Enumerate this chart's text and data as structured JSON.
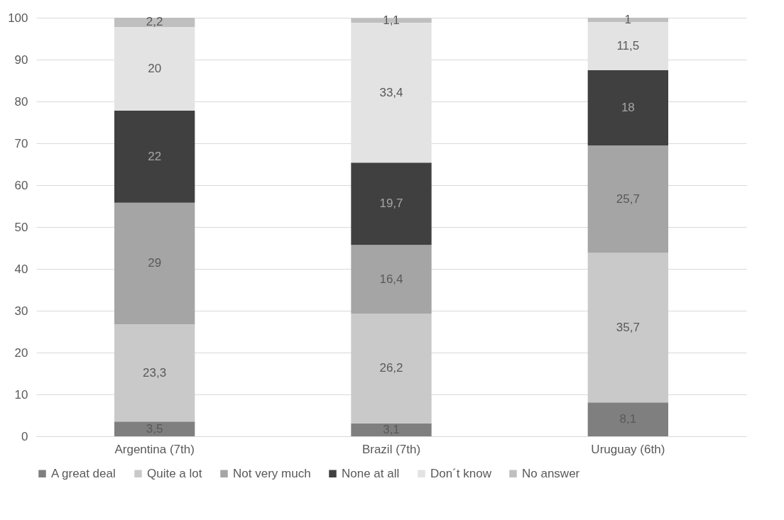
{
  "chart_data": {
    "type": "bar",
    "stacked": true,
    "categories": [
      "Argentina (7th)",
      "Brazil (7th)",
      "Uruguay (6th)"
    ],
    "series": [
      {
        "name": "A great deal",
        "color": "#7f7f7f",
        "values": [
          3.5,
          3.1,
          8.1
        ],
        "value_labels": [
          "3,5",
          "3,1",
          "8,1"
        ]
      },
      {
        "name": "Quite a lot",
        "color": "#c9c9c9",
        "values": [
          23.3,
          26.2,
          35.7
        ],
        "value_labels": [
          "23,3",
          "26,2",
          "35,7"
        ]
      },
      {
        "name": "Not very much",
        "color": "#a5a5a5",
        "values": [
          29,
          16.4,
          25.7
        ],
        "value_labels": [
          "29",
          "16,4",
          "25,7"
        ]
      },
      {
        "name": "None at all",
        "color": "#404040",
        "values": [
          22,
          19.7,
          18
        ],
        "value_labels": [
          "22",
          "19,7",
          "18"
        ]
      },
      {
        "name": "Don´t know",
        "color": "#e3e3e3",
        "values": [
          20,
          33.4,
          11.5
        ],
        "value_labels": [
          "20",
          "33,4",
          "11,5"
        ]
      },
      {
        "name": "No answer",
        "color": "#bfbfbf",
        "values": [
          2.2,
          1.1,
          1
        ],
        "value_labels": [
          "2,2",
          "1,1",
          "1"
        ]
      }
    ],
    "ylim": [
      0,
      100
    ],
    "yticks": [
      0,
      10,
      20,
      30,
      40,
      50,
      60,
      70,
      80,
      90,
      100
    ],
    "grid": "y",
    "legend": "bottom"
  }
}
